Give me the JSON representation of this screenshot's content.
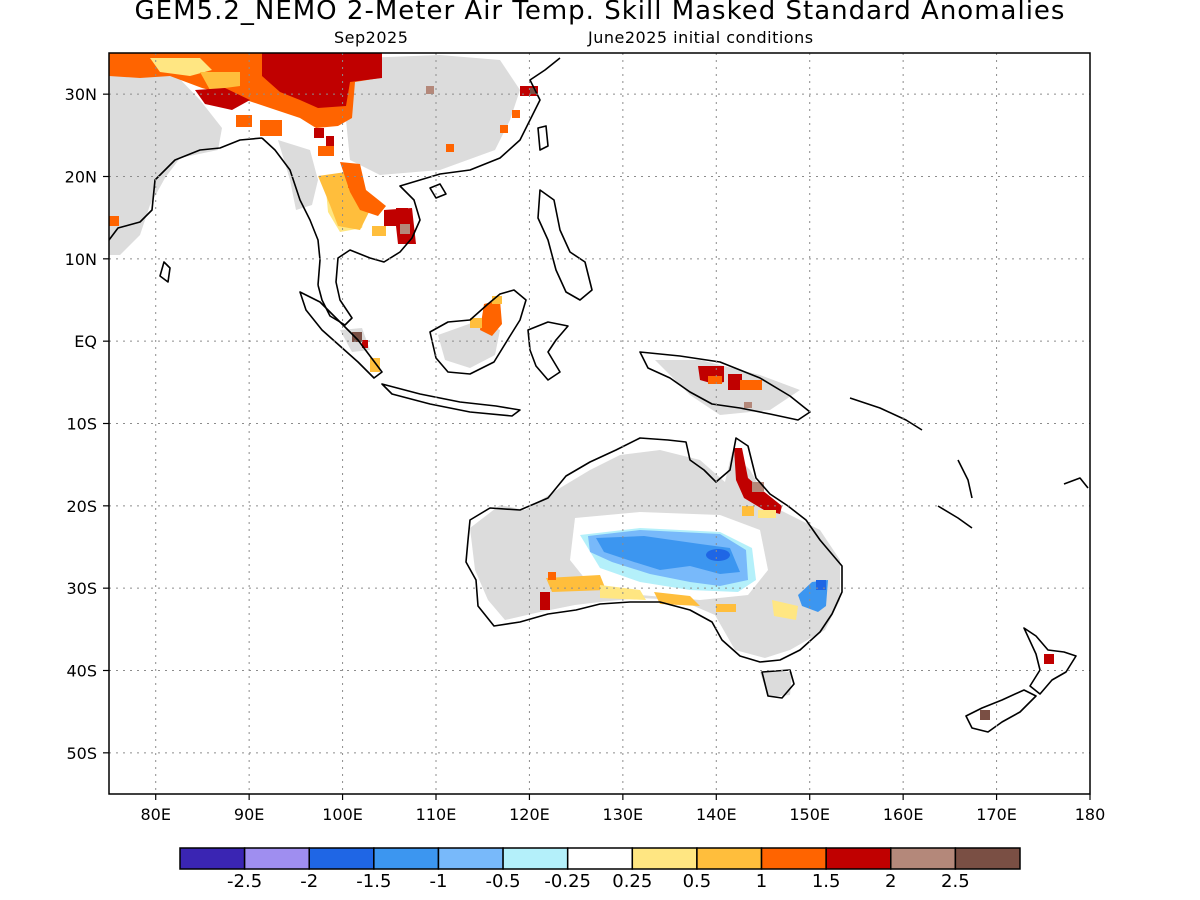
{
  "title": "GEM5.2_NEMO 2-Meter Air Temp. Skill Masked Standard Anomalies",
  "valid_month": "Sep2025",
  "initial_conditions": "June2025 initial conditions",
  "map": {
    "lon_range": [
      75,
      180
    ],
    "lat_range": [
      -55,
      35
    ],
    "lon_ticks": [
      "80E",
      "90E",
      "100E",
      "110E",
      "120E",
      "130E",
      "140E",
      "150E",
      "160E",
      "170E",
      "180"
    ],
    "lat_ticks": [
      "30N",
      "20N",
      "10N",
      "EQ",
      "10S",
      "20S",
      "30S",
      "40S",
      "50S"
    ],
    "grid": "dotted",
    "mask_color": "#dcdcdc"
  },
  "colorbar": {
    "colors": [
      "#3a25b3",
      "#9f8ef0",
      "#1f66e5",
      "#3c96f0",
      "#78b9fa",
      "#b4f0fa",
      "#ffffff",
      "#ffe682",
      "#ffbe3c",
      "#ff6400",
      "#c00000",
      "#b4887a",
      "#7a4f44"
    ],
    "labels": [
      "-2.5",
      "-2",
      "-1.5",
      "-1",
      "-0.5",
      "-0.25",
      "0.25",
      "0.5",
      "1",
      "1.5",
      "2",
      "2.5"
    ]
  }
}
